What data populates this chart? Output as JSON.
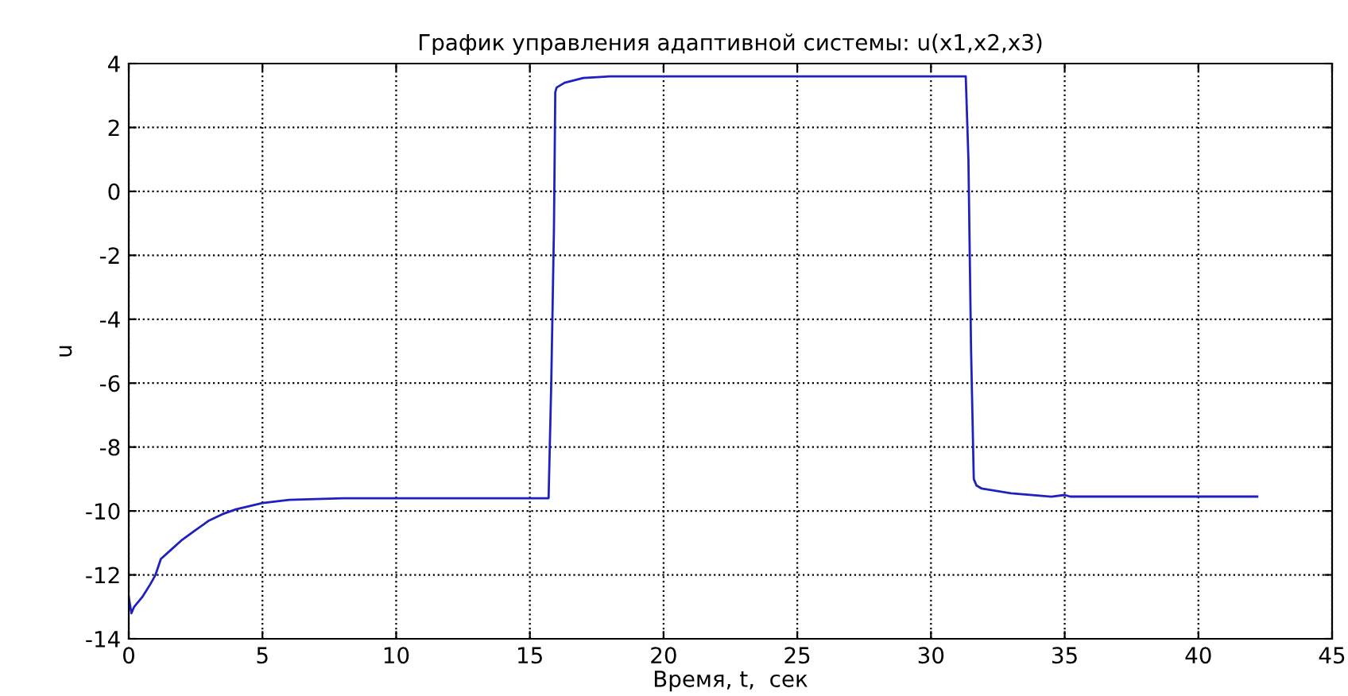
{
  "chart_data": {
    "type": "line",
    "title": "График управления адаптивной системы: u(x1,x2,x3)",
    "xlabel": "Время, t,  сек",
    "ylabel": "u",
    "xlim": [
      0,
      45
    ],
    "xticks": [
      0,
      5,
      10,
      15,
      20,
      25,
      30,
      35,
      40,
      45
    ],
    "ylim": [
      -14,
      4
    ],
    "yticks": [
      -14,
      -12,
      -10,
      -8,
      -6,
      -4,
      -2,
      0,
      2,
      4
    ],
    "grid": true,
    "line_style": "solid",
    "marker": "none",
    "series": [
      {
        "color": "#2020c0",
        "x": [
          0,
          0.1,
          0.2,
          0.5,
          0.8,
          1.0,
          1.2,
          1.6,
          2.0,
          2.5,
          3.0,
          3.5,
          4.0,
          5.0,
          6.0,
          8.0,
          12.0,
          15.7,
          15.8,
          15.9,
          15.95,
          16.0,
          16.3,
          17.0,
          18.0,
          25.0,
          31.3,
          31.4,
          31.5,
          31.6,
          31.7,
          31.9,
          33.0,
          34.5,
          35.0,
          35.2,
          42.2
        ],
        "values": [
          -12.7,
          -13.2,
          -13.0,
          -12.7,
          -12.3,
          -12.0,
          -11.5,
          -11.2,
          -10.9,
          -10.6,
          -10.3,
          -10.1,
          -9.95,
          -9.75,
          -9.65,
          -9.6,
          -9.6,
          -9.6,
          -6.0,
          -1.2,
          3.1,
          3.25,
          3.4,
          3.55,
          3.6,
          3.6,
          3.6,
          1.0,
          -5.0,
          -9.0,
          -9.2,
          -9.3,
          -9.45,
          -9.55,
          -9.5,
          -9.55,
          -9.55
        ]
      }
    ]
  }
}
